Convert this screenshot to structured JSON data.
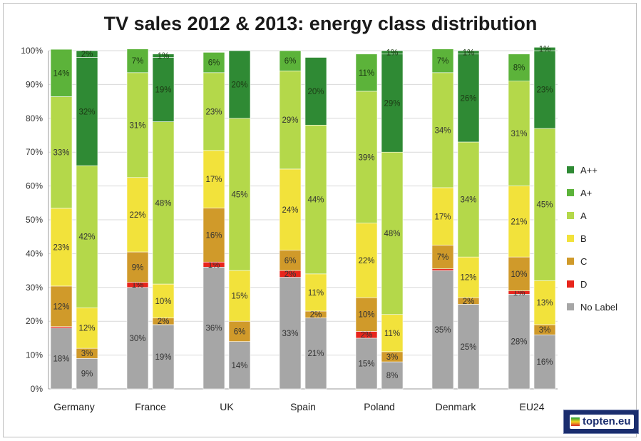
{
  "chart_data": {
    "type": "bar",
    "stacked": true,
    "title": "TV sales 2012 & 2013: energy class distribution",
    "ylim": [
      0,
      100
    ],
    "yticks": [
      "0%",
      "10%",
      "20%",
      "30%",
      "40%",
      "50%",
      "60%",
      "70%",
      "80%",
      "90%",
      "100%"
    ],
    "grid": true,
    "legend_position": "right",
    "classes": [
      "No Label",
      "D",
      "C",
      "B",
      "A",
      "A+",
      "A++"
    ],
    "legend_order": [
      "A++",
      "A+",
      "A",
      "B",
      "C",
      "D",
      "No Label"
    ],
    "colors": {
      "No Label": "#a6a6a6",
      "D": "#e8251c",
      "C": "#d09a2a",
      "B": "#f2e23b",
      "A": "#b4d84a",
      "A+": "#5cb33a",
      "A++": "#2f8a34"
    },
    "countries": [
      {
        "name": "Germany",
        "y2012": {
          "No Label": 18,
          "D": 0.4,
          "C": 12,
          "B": 23,
          "A": 33,
          "A+": 14,
          "A++": 0
        },
        "y2013": {
          "No Label": 9,
          "D": 0,
          "C": 3,
          "B": 12,
          "A": 42,
          "A+": 0,
          "A++": 32,
          "A+++": 2
        },
        "labels2012": {
          "No Label": "18%",
          "C": "12%",
          "B": "23%",
          "A": "33%",
          "A+": "14%"
        },
        "labels2013": {
          "No Label": "9%",
          "C": "3%",
          "B": "12%",
          "A": "42%",
          "A++": "32%",
          "A+++": "2%"
        }
      },
      {
        "name": "France",
        "y2012": {
          "No Label": 30,
          "D": 1.5,
          "C": 9,
          "B": 22,
          "A": 31,
          "A+": 7,
          "A++": 0
        },
        "y2013": {
          "No Label": 19,
          "D": 0,
          "C": 2,
          "B": 10,
          "A": 48,
          "A+": 0,
          "A++": 19,
          "A+++": 1
        },
        "labels2012": {
          "No Label": "30%",
          "D": "1%",
          "C": "9%",
          "B": "22%",
          "A": "31%",
          "A+": "7%"
        },
        "labels2013": {
          "No Label": "19%",
          "C": "2%",
          "B": "10%",
          "A": "48%",
          "A++": "19%",
          "A+++": "1%"
        }
      },
      {
        "name": "UK",
        "y2012": {
          "No Label": 36,
          "D": 1.5,
          "C": 16,
          "B": 17,
          "A": 23,
          "A+": 6,
          "A++": 0
        },
        "y2013": {
          "No Label": 14,
          "D": 0,
          "C": 6,
          "B": 15,
          "A": 45,
          "A+": 0,
          "A++": 20
        },
        "labels2012": {
          "No Label": "36%",
          "D": "1%",
          "C": "16%",
          "B": "17%",
          "A": "23%",
          "A+": "6%"
        },
        "labels2013": {
          "No Label": "14%",
          "C": "6%",
          "B": "15%",
          "A": "45%",
          "A++": "20%"
        }
      },
      {
        "name": "Spain",
        "y2012": {
          "No Label": 33,
          "D": 2,
          "C": 6,
          "B": 24,
          "A": 29,
          "A+": 6,
          "A++": 0
        },
        "y2013": {
          "No Label": 21,
          "D": 0,
          "C": 2,
          "B": 11,
          "A": 44,
          "A+": 0,
          "A++": 20
        },
        "labels2012": {
          "No Label": "33%",
          "D": "2%",
          "C": "6%",
          "B": "24%",
          "A": "29%",
          "A+": "6%"
        },
        "labels2013": {
          "No Label": "21%",
          "C": "2%",
          "B": "11%",
          "A": "44%",
          "A++": "20%"
        }
      },
      {
        "name": "Poland",
        "y2012": {
          "No Label": 15,
          "D": 2,
          "C": 10,
          "B": 22,
          "A": 39,
          "A+": 11,
          "A++": 0
        },
        "y2013": {
          "No Label": 8,
          "D": 0,
          "C": 3,
          "B": 11,
          "A": 48,
          "A+": 0,
          "A++": 29,
          "A+++": 1
        },
        "labels2012": {
          "No Label": "15%",
          "D": "2%",
          "C": "10%",
          "B": "22%",
          "A": "39%",
          "A+": "11%"
        },
        "labels2013": {
          "No Label": "8%",
          "C": "3%",
          "B": "11%",
          "A": "48%",
          "A++": "29%",
          "A+++": "1%"
        }
      },
      {
        "name": "Denmark",
        "y2012": {
          "No Label": 35,
          "D": 0.5,
          "C": 7,
          "B": 17,
          "A": 34,
          "A+": 7,
          "A++": 0
        },
        "y2013": {
          "No Label": 25,
          "D": 0,
          "C": 2,
          "B": 12,
          "A": 34,
          "A+": 0,
          "A++": 26,
          "A+++": 1
        },
        "labels2012": {
          "No Label": "35%",
          "C": "7%",
          "B": "17%",
          "A": "34%",
          "A+": "7%"
        },
        "labels2013": {
          "No Label": "25%",
          "C": "2%",
          "B": "12%",
          "A": "34%",
          "A++": "26%",
          "A+++": "1%"
        }
      },
      {
        "name": "EU24",
        "y2012": {
          "No Label": 28,
          "D": 1,
          "C": 10,
          "B": 21,
          "A": 31,
          "A+": 8,
          "A++": 0
        },
        "y2013": {
          "No Label": 16,
          "D": 0,
          "C": 3,
          "B": 13,
          "A": 45,
          "A+": 0,
          "A++": 23,
          "A+++": 1
        },
        "labels2012": {
          "No Label": "28%",
          "D": "1%",
          "C": "10%",
          "B": "21%",
          "A": "31%",
          "A+": "8%"
        },
        "labels2013": {
          "No Label": "16%",
          "C": "3%",
          "B": "13%",
          "A": "45%",
          "A++": "23%",
          "A+++": "1%"
        }
      }
    ]
  },
  "logo": {
    "text": "topten.eu"
  }
}
